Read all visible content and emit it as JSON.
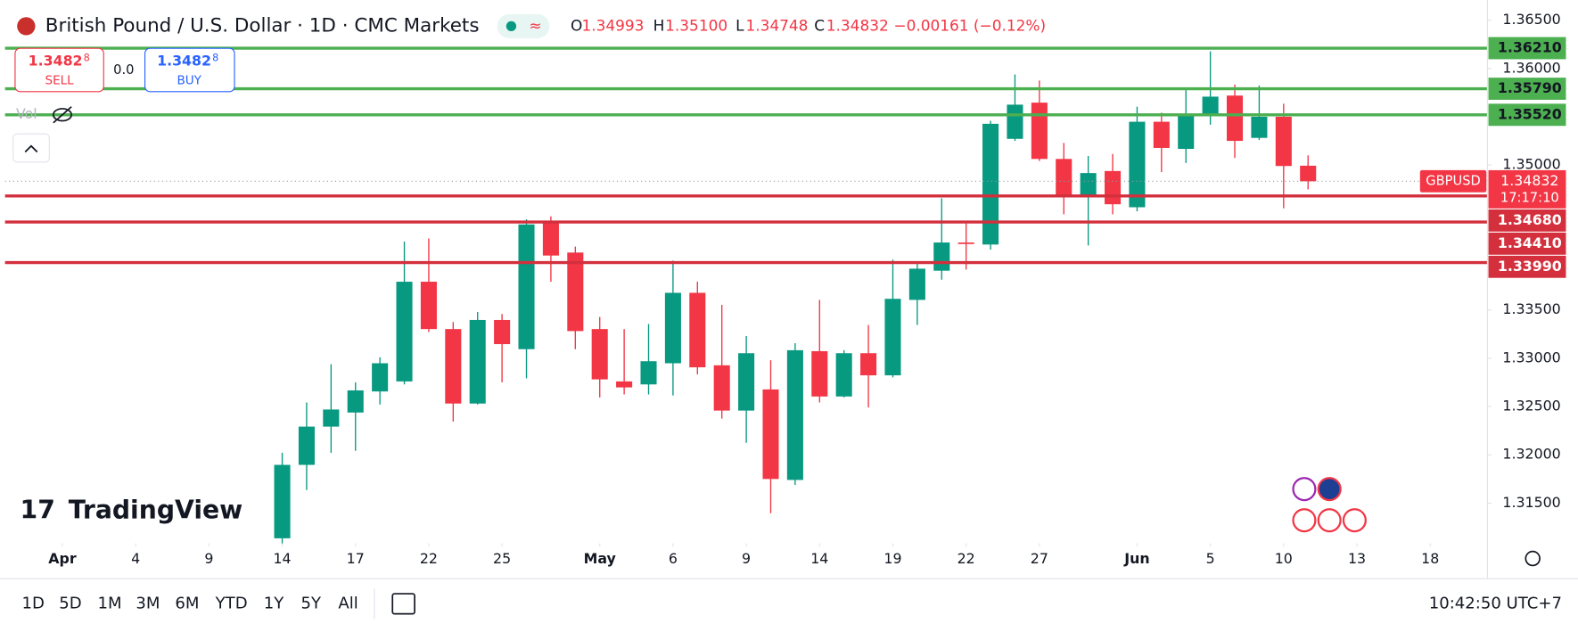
{
  "header": {
    "title": "British Pound / U.S. Dollar · 1D · CMC Markets",
    "o_label": "O",
    "open": "1.34993",
    "h_label": "H",
    "high": "1.35100",
    "l_label": "L",
    "low": "1.34748",
    "c_label": "C",
    "close": "1.34832",
    "change": "−0.00161 (−0.12%)"
  },
  "trade": {
    "sell_price": "1.3482",
    "sell_pip": "8",
    "sell": "SELL",
    "spread": "0.0",
    "buy_price": "1.3482",
    "buy_pip": "8",
    "buy": "BUY"
  },
  "vol": "Vol",
  "logo": "TradingView",
  "ranges": [
    "1D",
    "5D",
    "1M",
    "3M",
    "6M",
    "YTD",
    "1Y",
    "5Y",
    "All"
  ],
  "clock": "10:42:50 UTC+7",
  "chart_data": {
    "type": "candlestick",
    "up_color": "#089981",
    "down_color": "#f23645",
    "categories": [
      "Apr 1",
      "Apr 2",
      "Apr 3",
      "Apr 4",
      "Apr 7",
      "Apr 8",
      "Apr 9",
      "Apr 10",
      "Apr 11",
      "Apr 14",
      "Apr 15",
      "Apr 16",
      "Apr 17",
      "Apr 18",
      "Apr 21",
      "Apr 22",
      "Apr 23",
      "Apr 24",
      "Apr 25",
      "Apr 28",
      "Apr 29",
      "Apr 30",
      "May 1",
      "May 2",
      "May 5",
      "May 6",
      "May 7",
      "May 8",
      "May 9",
      "May 12",
      "May 13",
      "May 14",
      "May 15",
      "May 16",
      "May 19",
      "May 20",
      "May 21",
      "May 22",
      "May 23",
      "May 26",
      "May 27",
      "May 28",
      "May 29",
      "May 30",
      "Jun 2",
      "Jun 3",
      "Jun 4",
      "Jun 5",
      "Jun 6",
      "Jun 9",
      "Jun 10",
      "Jun 11",
      "Jun 12",
      "Jun 13",
      "Jun 16",
      "Jun 17",
      "Jun 18"
    ],
    "open": [
      null,
      null,
      null,
      null,
      null,
      null,
      null,
      null,
      null,
      1.31136,
      1.31896,
      1.32292,
      1.32438,
      1.32656,
      1.3276,
      1.33792,
      1.33302,
      1.32531,
      1.33396,
      1.33094,
      1.34417,
      1.34094,
      1.33302,
      1.3276,
      1.32729,
      1.32948,
      1.33677,
      1.32927,
      1.32458,
      1.32677,
      1.3174,
      1.33073,
      1.32604,
      1.33052,
      1.32823,
      1.33604,
      1.33906,
      1.34198,
      1.34177,
      1.35271,
      1.35646,
      1.35063,
      1.34688,
      1.34938,
      1.34563,
      1.35448,
      1.35167,
      1.35531,
      1.35719,
      1.35281,
      1.355,
      1.34993,
      null,
      null,
      null,
      null,
      null
    ],
    "high": [
      null,
      null,
      null,
      null,
      null,
      null,
      null,
      null,
      null,
      1.32021,
      1.32542,
      1.32938,
      1.3275,
      1.3301,
      1.34208,
      1.3424,
      1.33375,
      1.33479,
      1.33458,
      1.34438,
      1.34469,
      1.34156,
      1.33427,
      1.33302,
      1.33354,
      1.3401,
      1.33792,
      1.33552,
      1.33229,
      1.32979,
      1.33156,
      1.33604,
      1.33083,
      1.33344,
      1.34021,
      1.33979,
      1.34656,
      1.34396,
      1.35458,
      1.35938,
      1.35875,
      1.35229,
      1.35094,
      1.35115,
      1.35604,
      1.35542,
      1.35792,
      1.36177,
      1.35833,
      1.35823,
      1.35635,
      1.351,
      null,
      null,
      null,
      null,
      null
    ],
    "low": [
      null,
      null,
      null,
      null,
      null,
      null,
      null,
      null,
      null,
      1.31083,
      1.31635,
      1.32021,
      1.32042,
      1.32521,
      1.32729,
      1.33271,
      1.32344,
      1.32521,
      1.3275,
      1.32792,
      1.33792,
      1.33094,
      1.32594,
      1.32625,
      1.32625,
      1.32615,
      1.32833,
      1.32375,
      1.32125,
      1.31396,
      1.31688,
      1.32542,
      1.32594,
      1.3249,
      1.32802,
      1.33344,
      1.33813,
      1.33917,
      1.34125,
      1.3525,
      1.35042,
      1.3449,
      1.34167,
      1.3449,
      1.34521,
      1.34927,
      1.35021,
      1.35417,
      1.35073,
      1.3526,
      1.34552,
      1.34748,
      null,
      null,
      null,
      null,
      null
    ],
    "close": [
      null,
      null,
      null,
      null,
      null,
      null,
      null,
      null,
      null,
      1.31896,
      1.32292,
      1.32469,
      1.32667,
      1.32948,
      1.33792,
      1.33302,
      1.32531,
      1.33396,
      1.33146,
      1.34385,
      1.34063,
      1.33281,
      1.32781,
      1.32698,
      1.32969,
      1.33677,
      1.32906,
      1.32458,
      1.33052,
      1.3175,
      1.33083,
      1.32604,
      1.33052,
      1.32823,
      1.33615,
      1.33927,
      1.34198,
      1.34188,
      1.35427,
      1.35625,
      1.35063,
      1.34677,
      1.34917,
      1.34594,
      1.35448,
      1.35177,
      1.35531,
      1.35708,
      1.3525,
      1.355,
      1.3499,
      1.34832,
      null,
      null,
      null,
      null,
      null
    ],
    "xticks": [
      {
        "value": "Apr 1",
        "label": "Apr"
      },
      {
        "value": "Apr 4",
        "label": "4"
      },
      {
        "value": "Apr 9",
        "label": "9"
      },
      {
        "value": "Apr 14",
        "label": "14"
      },
      {
        "value": "Apr 17",
        "label": "17"
      },
      {
        "value": "Apr 22",
        "label": "22"
      },
      {
        "value": "Apr 25",
        "label": "25"
      },
      {
        "value": "May 1",
        "label": "May"
      },
      {
        "value": "May 6",
        "label": "6"
      },
      {
        "value": "May 9",
        "label": "9"
      },
      {
        "value": "May 14",
        "label": "14"
      },
      {
        "value": "May 19",
        "label": "19"
      },
      {
        "value": "May 22",
        "label": "22"
      },
      {
        "value": "May 27",
        "label": "27"
      },
      {
        "value": "Jun 2",
        "label": "Jun"
      },
      {
        "value": "Jun 5",
        "label": "5"
      },
      {
        "value": "Jun 10",
        "label": "10"
      },
      {
        "value": "Jun 13",
        "label": "13"
      },
      {
        "value": "Jun 18",
        "label": "18"
      }
    ],
    "ylim": [
      1.31083,
      1.36708
    ],
    "yticks": [
      {
        "value": 1.365,
        "label": "1.36500"
      },
      {
        "value": 1.36,
        "label": "1.36000"
      },
      {
        "value": 1.35,
        "label": "1.35000"
      },
      {
        "value": 1.335,
        "label": "1.33500"
      },
      {
        "value": 1.33,
        "label": "1.33000"
      },
      {
        "value": 1.325,
        "label": "1.32500"
      },
      {
        "value": 1.32,
        "label": "1.32000"
      },
      {
        "value": 1.315,
        "label": "1.31500"
      }
    ],
    "grid": false,
    "levels": [
      {
        "value": 1.3621,
        "label": "1.36210",
        "color": "#4caf50"
      },
      {
        "value": 1.3579,
        "label": "1.35790",
        "color": "#4caf50"
      },
      {
        "value": 1.3552,
        "label": "1.35520",
        "color": "#4caf50"
      },
      {
        "value": 1.3468,
        "label": "1.34680",
        "color": "#d32f3c"
      },
      {
        "value": 1.3441,
        "label": "1.34410",
        "color": "#d32f3c"
      },
      {
        "value": 1.3399,
        "label": "1.33990",
        "color": "#d32f3c"
      }
    ],
    "current": {
      "value": 1.34832,
      "label": "1.34832",
      "symbol": "GBPUSD",
      "countdown": "17:17:10",
      "color": "#f23645"
    }
  }
}
